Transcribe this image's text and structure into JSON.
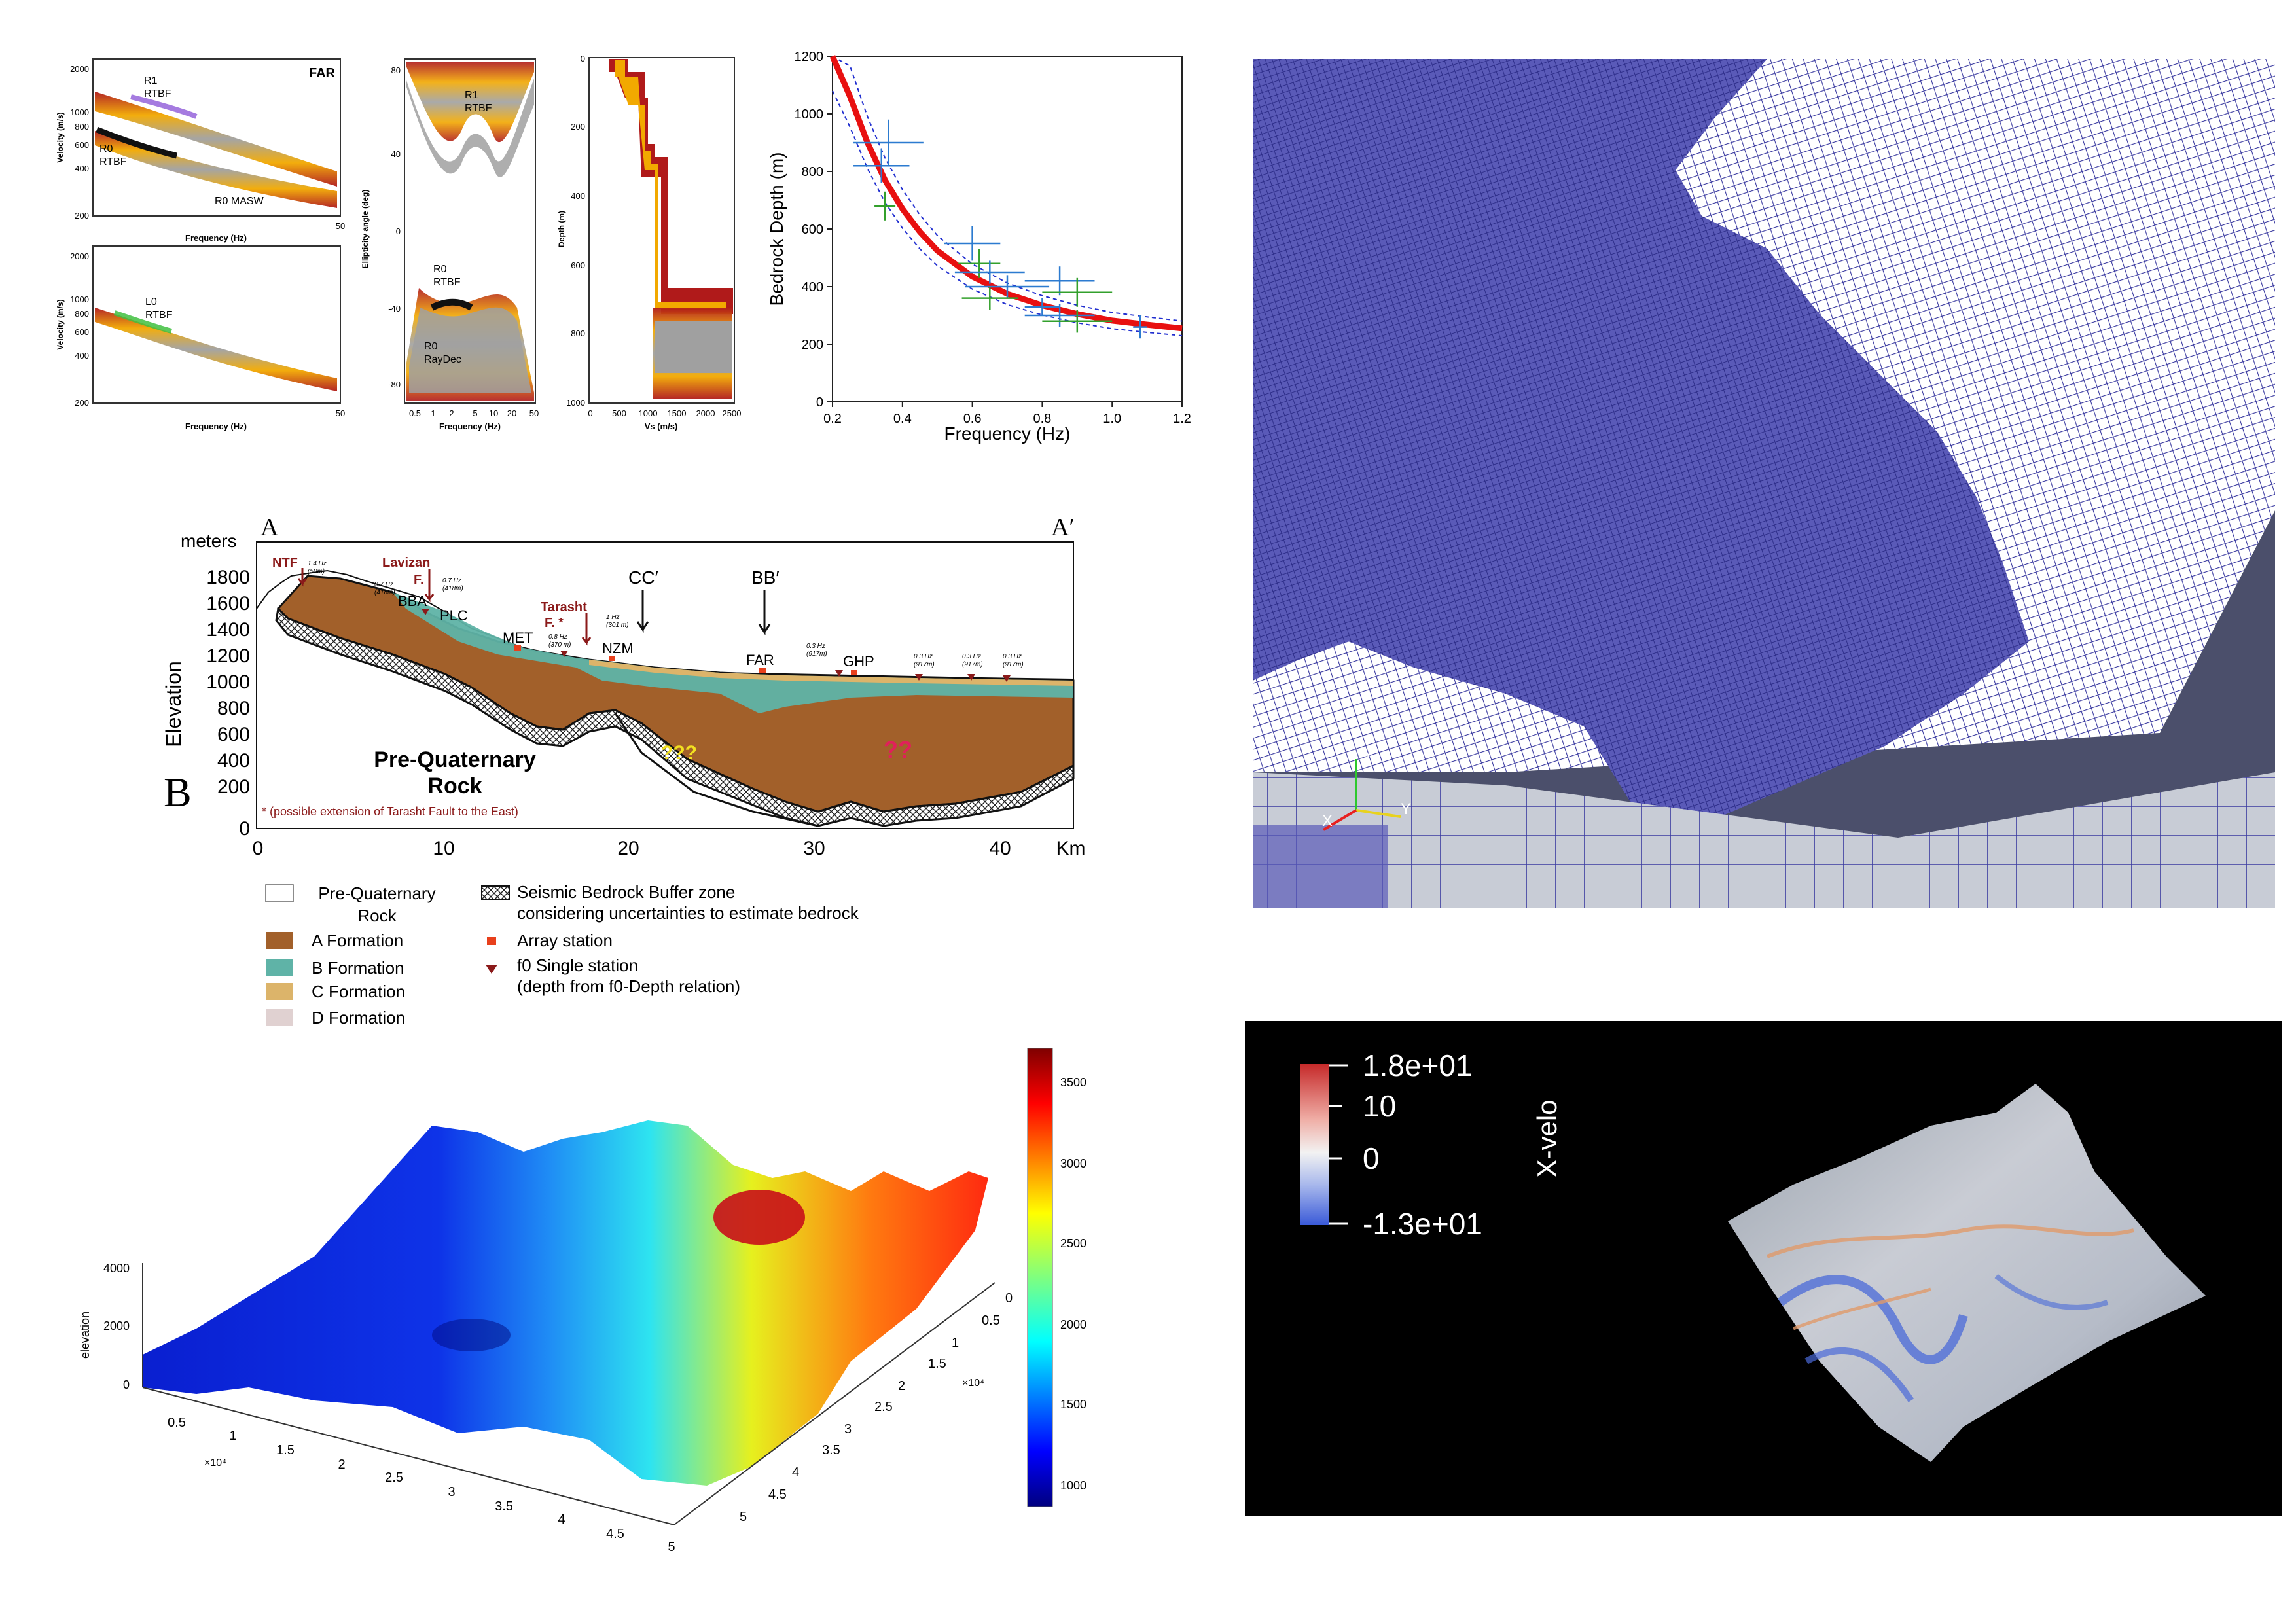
{
  "colors": {
    "rtbf_dark": "#b01a1a",
    "rtbf_mid": "#f2a900",
    "rtbf_light": "#f5e04a",
    "grey_fill": "#a0a0a0",
    "fit_red": "#e81010",
    "fit_dash": "#2230d0",
    "error_blue": "#2c7bd0",
    "error_green": "#33a02c",
    "formation_a": "#a2602a",
    "formation_b": "#5fb3a7",
    "formation_c": "#dcb46a",
    "formation_d": "#e0d1d1",
    "mesh_blue": "#3a3aa0",
    "mesh_panel_bg": "#4b4f6b",
    "velo_bg": "#000000"
  },
  "panel_far": {
    "title": "FAR",
    "top": {
      "ylabel": "Velocity (m/s)",
      "xlabel": "Frequency (Hz)",
      "yticks": [
        "2000",
        "1000",
        "800",
        "600",
        "400",
        "200"
      ],
      "xticks": [
        "50"
      ],
      "labels": [
        "R1",
        "RTBF",
        "R0",
        "RTBF",
        "R0 MASW"
      ]
    },
    "bottom": {
      "ylabel": "Velocity (m/s)",
      "xlabel": "Frequency (Hz)",
      "yticks": [
        "2000",
        "1000",
        "800",
        "600",
        "400",
        "200"
      ],
      "xticks": [
        "50"
      ],
      "labels": [
        "L0",
        "RTBF"
      ]
    }
  },
  "panel_ellipticity": {
    "ylabel": "Ellipticity angle (deg)",
    "xlabel": "Frequency (Hz)",
    "yticks": [
      "80",
      "40",
      "0",
      "-40",
      "-80"
    ],
    "xticks": [
      "0.5",
      "1",
      "2",
      "5",
      "10",
      "20",
      "50"
    ],
    "labels": [
      "R1",
      "RTBF",
      "R0",
      "RTBF",
      "R0",
      "RayDec"
    ]
  },
  "panel_vs": {
    "ylabel": "Depth (m)",
    "xlabel": "Vs (m/s)",
    "yticks": [
      "0",
      "200",
      "400",
      "600",
      "800",
      "1000"
    ],
    "xticks": [
      "0",
      "500",
      "1000",
      "1500",
      "2000",
      "2500"
    ]
  },
  "chart_data": [
    {
      "type": "scatter",
      "title": "",
      "xlabel": "Frequency (Hz)",
      "ylabel": "Bedrock Depth (m)",
      "xlim": [
        0.2,
        1.2
      ],
      "ylim": [
        0,
        1200
      ],
      "xticks": [
        "0.2",
        "0.4",
        "0.6",
        "0.8",
        "1.0",
        "1.2"
      ],
      "yticks": [
        "0",
        "200",
        "400",
        "600",
        "800",
        "1000",
        "1200"
      ],
      "fit_curve": {
        "x": [
          0.2,
          0.25,
          0.3,
          0.35,
          0.4,
          0.45,
          0.5,
          0.6,
          0.7,
          0.8,
          0.9,
          1.0,
          1.1,
          1.2
        ],
        "y": [
          1200,
          1060,
          900,
          770,
          670,
          590,
          525,
          435,
          375,
          335,
          305,
          282,
          268,
          255
        ]
      },
      "points": [
        {
          "x": 0.36,
          "y": 900,
          "xerr": 0.1,
          "yerr": 80,
          "color": "blue"
        },
        {
          "x": 0.34,
          "y": 820,
          "xerr": 0.08,
          "yerr": 60,
          "color": "blue"
        },
        {
          "x": 0.35,
          "y": 680,
          "xerr": 0.03,
          "yerr": 50,
          "color": "green"
        },
        {
          "x": 0.6,
          "y": 550,
          "xerr": 0.08,
          "yerr": 60,
          "color": "blue"
        },
        {
          "x": 0.62,
          "y": 480,
          "xerr": 0.06,
          "yerr": 50,
          "color": "green"
        },
        {
          "x": 0.65,
          "y": 450,
          "xerr": 0.1,
          "yerr": 40,
          "color": "blue"
        },
        {
          "x": 0.7,
          "y": 400,
          "xerr": 0.12,
          "yerr": 40,
          "color": "blue"
        },
        {
          "x": 0.65,
          "y": 360,
          "xerr": 0.08,
          "yerr": 40,
          "color": "green"
        },
        {
          "x": 0.85,
          "y": 420,
          "xerr": 0.1,
          "yerr": 50,
          "color": "blue"
        },
        {
          "x": 0.9,
          "y": 380,
          "xerr": 0.1,
          "yerr": 50,
          "color": "green"
        },
        {
          "x": 0.8,
          "y": 330,
          "xerr": 0.05,
          "yerr": 30,
          "color": "blue"
        },
        {
          "x": 0.85,
          "y": 300,
          "xerr": 0.1,
          "yerr": 40,
          "color": "blue"
        },
        {
          "x": 0.9,
          "y": 280,
          "xerr": 0.1,
          "yerr": 40,
          "color": "green"
        },
        {
          "x": 1.08,
          "y": 260,
          "xerr": 0.02,
          "yerr": 40,
          "color": "blue"
        }
      ]
    }
  ],
  "section": {
    "label_a": "A",
    "label_a_prime": "A′",
    "label_b": "B",
    "units": "meters",
    "ylabel": "Elevation",
    "yticks": [
      "1800",
      "1600",
      "1400",
      "1200",
      "1000",
      "800",
      "600",
      "400",
      "200",
      "0"
    ],
    "xticks": [
      "0",
      "10",
      "20",
      "30",
      "40"
    ],
    "xunit": "Km",
    "faults": [
      "NTF",
      "Lavizan",
      "F.",
      "Tarasht",
      "F. *"
    ],
    "stations": [
      "BBA",
      "PLC",
      "MET",
      "NZM",
      "FAR",
      "GHP"
    ],
    "cross_sections": [
      "CC′",
      "BB′"
    ],
    "rock_label_1": "Pre-Quaternary",
    "rock_label_2": "Rock",
    "question_yellow": "???",
    "question_red": "??",
    "footnote": "* (possible extension of Tarasht Fault  to the East)",
    "station_annotations": [
      "1.4 Hz",
      "(50m)",
      "0.7 Hz",
      "(418m)",
      "0.7 Hz",
      "(418m)",
      "0.8 Hz",
      "(370 m)",
      "1 Hz",
      "(301 m)",
      "0.3 Hz",
      "(917m)",
      "0.3 Hz",
      "(917m)",
      "0.3 Hz",
      "(917m)",
      "0.3 Hz",
      "(917m)"
    ]
  },
  "legend": {
    "items": [
      {
        "label": "Pre-Quaternary",
        "label2": "Rock"
      },
      {
        "label": "A Formation"
      },
      {
        "label": "B Formation"
      },
      {
        "label": "C Formation"
      },
      {
        "label": "D Formation"
      }
    ],
    "right_items": [
      {
        "label": "Seismic Bedrock Buffer zone",
        "label2": "considering uncertainties to estimate bedrock"
      },
      {
        "label": "Array station"
      },
      {
        "label": "f0 Single station",
        "label2": "(depth from f0-Depth relation)"
      }
    ]
  },
  "surface": {
    "zlabel": "elevation",
    "zticks": [
      "4000",
      "2000",
      "0"
    ],
    "xticks": [
      "0.5",
      "1",
      "1.5",
      "2",
      "2.5",
      "3",
      "3.5",
      "4",
      "4.5",
      "5"
    ],
    "x_exp": "×10⁴",
    "yticks": [
      "0",
      "0.5",
      "1",
      "1.5",
      "2",
      "2.5",
      "3",
      "3.5",
      "4",
      "4.5",
      "5"
    ],
    "y_exp": "×10⁴",
    "colorbar_ticks": [
      "3500",
      "3000",
      "2500",
      "2000",
      "1500",
      "1000"
    ]
  },
  "mesh": {
    "axis_z": "Z",
    "axis_x": "X",
    "axis_y": "Y"
  },
  "velo": {
    "title": "X-velo",
    "ticks": [
      "1.8e+01",
      "10",
      "0",
      "-1.3e+01"
    ]
  }
}
